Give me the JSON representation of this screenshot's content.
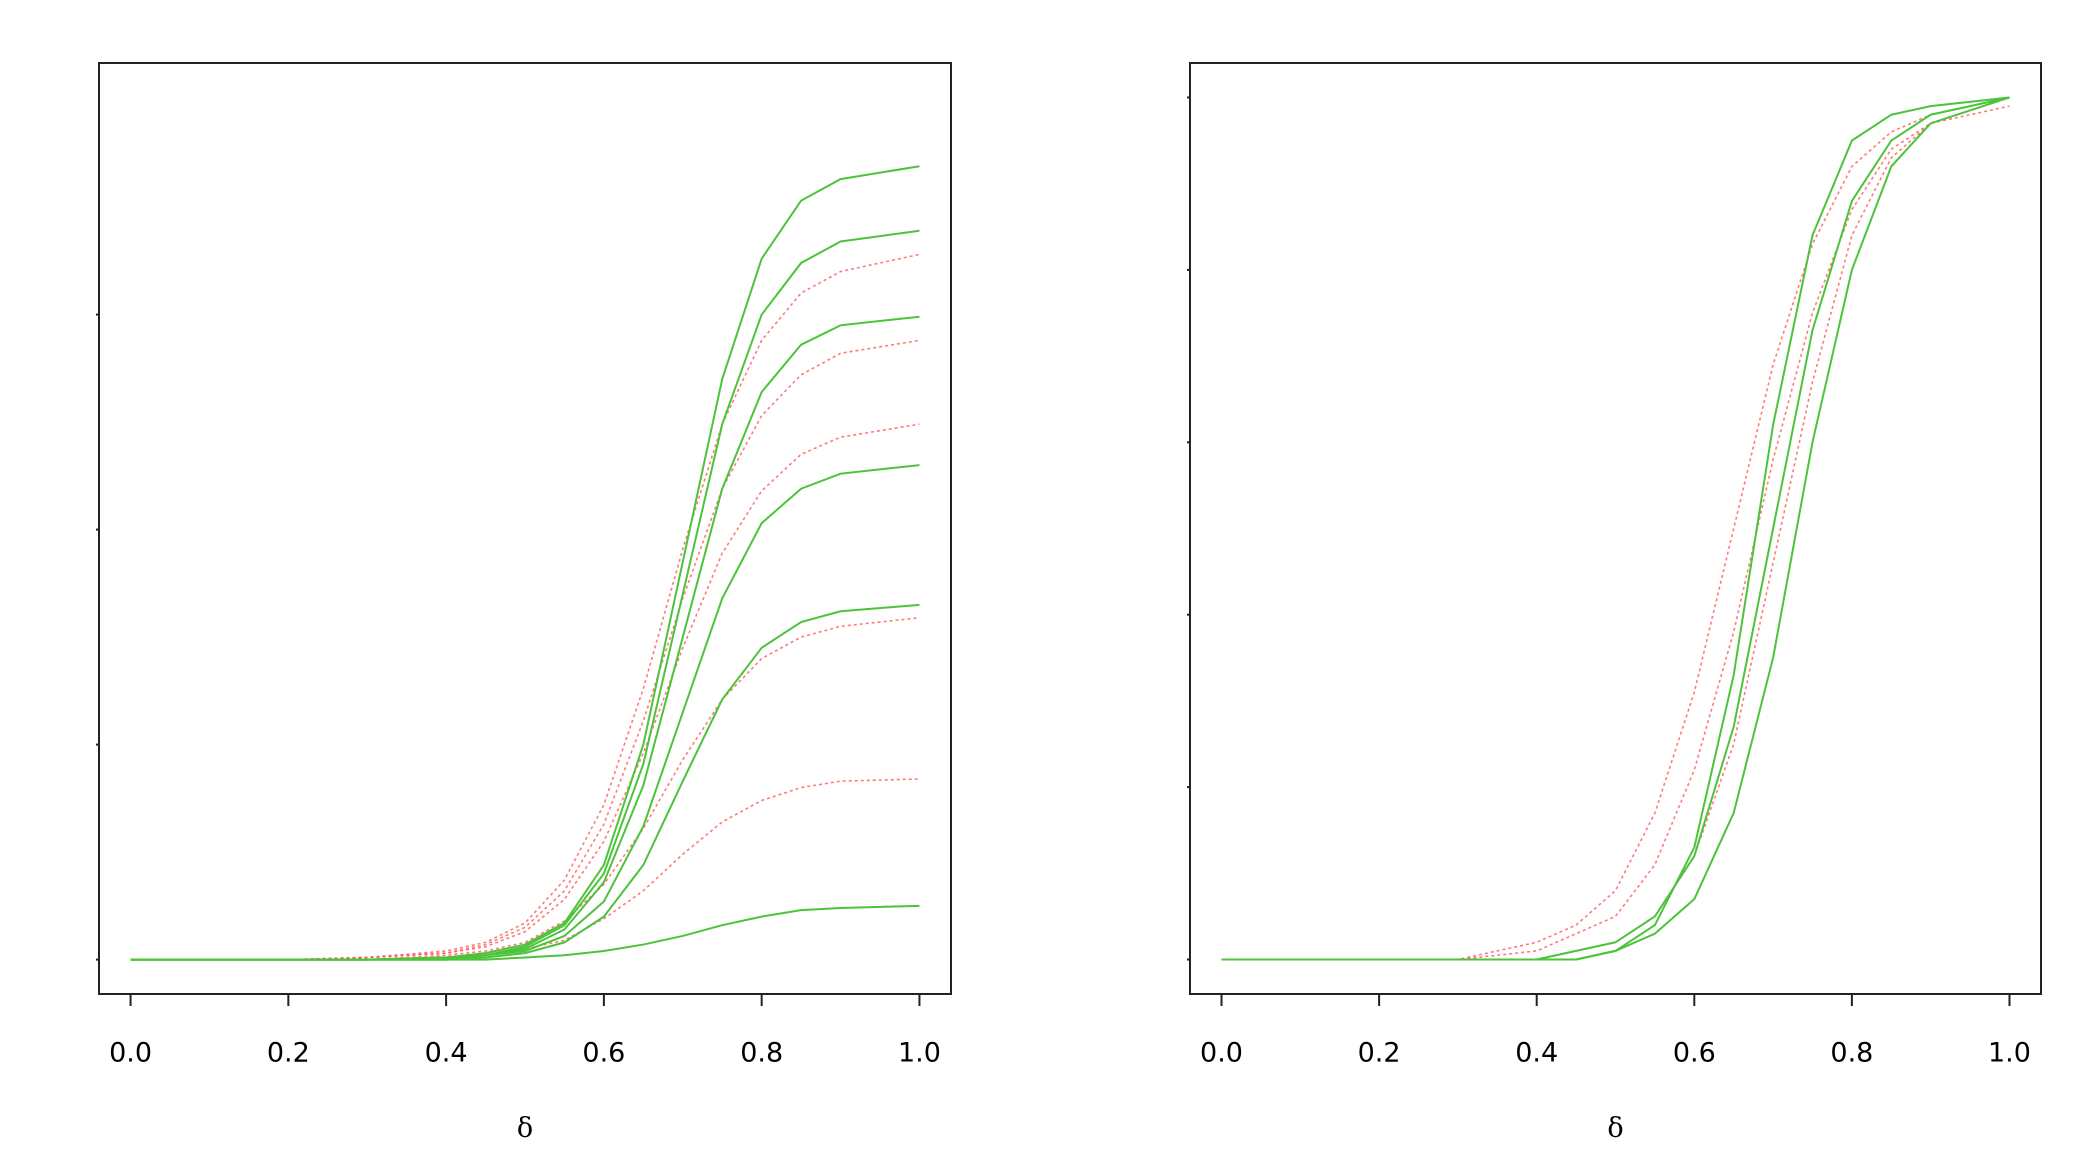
{
  "chart_data": [
    {
      "type": "line",
      "xlabel": "δ",
      "x": [
        0,
        0.1,
        0.2,
        0.3,
        0.4,
        0.45,
        0.5,
        0.55,
        0.6,
        0.65,
        0.7,
        0.75,
        0.8,
        0.85,
        0.9,
        1.0
      ],
      "xlim": [
        -0.04,
        1.04
      ],
      "ylim": [
        -0.16,
        4.17
      ],
      "xticks": [
        {
          "value": 0,
          "label": "0.0"
        },
        {
          "value": 0.2,
          "label": "0.2"
        },
        {
          "value": 0.4,
          "label": "0.4"
        },
        {
          "value": 0.6,
          "label": "0.6"
        },
        {
          "value": 0.8,
          "label": "0.8"
        },
        {
          "value": 1,
          "label": "1.0"
        }
      ],
      "yticks": [
        0,
        1,
        2,
        3
      ],
      "series": [
        {
          "color": "#ff4d4d",
          "dashed": true,
          "values": [
            0,
            0,
            0,
            0.01,
            0.04,
            0.08,
            0.17,
            0.37,
            0.72,
            1.26,
            1.91,
            2.49,
            2.88,
            3.1,
            3.2,
            3.28
          ]
        },
        {
          "color": "#ff4d4d",
          "dashed": true,
          "values": [
            0,
            0,
            0,
            0.01,
            0.03,
            0.07,
            0.15,
            0.32,
            0.63,
            1.11,
            1.68,
            2.19,
            2.53,
            2.72,
            2.82,
            2.88
          ]
        },
        {
          "color": "#ff4d4d",
          "dashed": true,
          "values": [
            0,
            0,
            0,
            0.01,
            0.03,
            0.06,
            0.13,
            0.28,
            0.55,
            0.96,
            1.45,
            1.89,
            2.18,
            2.35,
            2.43,
            2.49
          ]
        },
        {
          "color": "#ff4d4d",
          "dashed": true,
          "values": [
            0,
            0,
            0,
            0,
            0.02,
            0.04,
            0.08,
            0.18,
            0.35,
            0.61,
            0.93,
            1.21,
            1.4,
            1.5,
            1.55,
            1.59
          ]
        },
        {
          "color": "#ff4d4d",
          "dashed": true,
          "values": [
            0,
            0,
            0,
            0,
            0.01,
            0.02,
            0.05,
            0.09,
            0.19,
            0.32,
            0.49,
            0.64,
            0.74,
            0.8,
            0.83,
            0.84
          ]
        },
        {
          "color": "#4cc33a",
          "dashed": false,
          "values": [
            0,
            0,
            0,
            0,
            0.01,
            0.03,
            0.07,
            0.17,
            0.44,
            1.0,
            1.85,
            2.7,
            3.26,
            3.53,
            3.63,
            3.69
          ]
        },
        {
          "color": "#4cc33a",
          "dashed": false,
          "values": [
            0,
            0,
            0,
            0,
            0.01,
            0.02,
            0.06,
            0.16,
            0.4,
            0.91,
            1.7,
            2.49,
            3.0,
            3.24,
            3.34,
            3.39
          ]
        },
        {
          "color": "#4cc33a",
          "dashed": false,
          "values": [
            0,
            0,
            0,
            0,
            0.01,
            0.02,
            0.05,
            0.14,
            0.36,
            0.81,
            1.5,
            2.19,
            2.64,
            2.86,
            2.95,
            2.99
          ]
        },
        {
          "color": "#4cc33a",
          "dashed": false,
          "values": [
            0,
            0,
            0,
            0,
            0,
            0.02,
            0.04,
            0.11,
            0.27,
            0.62,
            1.15,
            1.68,
            2.03,
            2.19,
            2.26,
            2.3
          ]
        },
        {
          "color": "#4cc33a",
          "dashed": false,
          "values": [
            0,
            0,
            0,
            0,
            0,
            0.01,
            0.03,
            0.08,
            0.2,
            0.44,
            0.83,
            1.21,
            1.45,
            1.57,
            1.62,
            1.65
          ]
        },
        {
          "color": "#4cc33a",
          "dashed": false,
          "values": [
            0,
            0,
            0,
            0,
            0,
            0,
            0.01,
            0.02,
            0.04,
            0.07,
            0.11,
            0.16,
            0.2,
            0.23,
            0.24,
            0.25
          ]
        }
      ]
    },
    {
      "type": "line",
      "xlabel": "δ",
      "x": [
        0,
        0.1,
        0.2,
        0.3,
        0.4,
        0.45,
        0.5,
        0.55,
        0.6,
        0.65,
        0.7,
        0.75,
        0.8,
        0.85,
        0.9,
        1.0
      ],
      "xlim": [
        -0.04,
        1.04
      ],
      "ylim": [
        -0.04,
        1.04
      ],
      "xticks": [
        {
          "value": 0,
          "label": "0.0"
        },
        {
          "value": 0.2,
          "label": "0.2"
        },
        {
          "value": 0.4,
          "label": "0.4"
        },
        {
          "value": 0.6,
          "label": "0.6"
        },
        {
          "value": 0.8,
          "label": "0.8"
        },
        {
          "value": 1,
          "label": "1.0"
        }
      ],
      "yticks": [
        0,
        0.2,
        0.4,
        0.6,
        0.8,
        1
      ],
      "series": [
        {
          "color": "#ff4d4d",
          "dashed": true,
          "values": [
            0,
            0,
            0,
            0,
            0.01,
            0.03,
            0.05,
            0.11,
            0.22,
            0.38,
            0.58,
            0.75,
            0.87,
            0.94,
            0.97,
            0.99
          ]
        },
        {
          "color": "#ff4d4d",
          "dashed": true,
          "values": [
            0,
            0,
            0,
            0,
            0.02,
            0.04,
            0.08,
            0.17,
            0.31,
            0.5,
            0.69,
            0.83,
            0.92,
            0.96,
            0.98,
            1.0
          ]
        },
        {
          "color": "#ff4d4d",
          "dashed": true,
          "values": [
            0,
            0,
            0,
            0,
            0,
            0.01,
            0.02,
            0.05,
            0.12,
            0.25,
            0.46,
            0.67,
            0.84,
            0.93,
            0.97,
            1.0
          ]
        },
        {
          "color": "#4cc33a",
          "dashed": false,
          "values": [
            0,
            0,
            0,
            0,
            0,
            0.01,
            0.02,
            0.05,
            0.12,
            0.27,
            0.5,
            0.73,
            0.88,
            0.95,
            0.98,
            1.0
          ]
        },
        {
          "color": "#4cc33a",
          "dashed": false,
          "values": [
            0,
            0,
            0,
            0,
            0,
            0,
            0.01,
            0.03,
            0.07,
            0.17,
            0.35,
            0.6,
            0.8,
            0.92,
            0.97,
            1.0
          ]
        },
        {
          "color": "#4cc33a",
          "dashed": false,
          "values": [
            0,
            0,
            0,
            0,
            0,
            0,
            0.01,
            0.04,
            0.13,
            0.33,
            0.62,
            0.84,
            0.95,
            0.98,
            0.99,
            1.0
          ]
        }
      ]
    }
  ]
}
